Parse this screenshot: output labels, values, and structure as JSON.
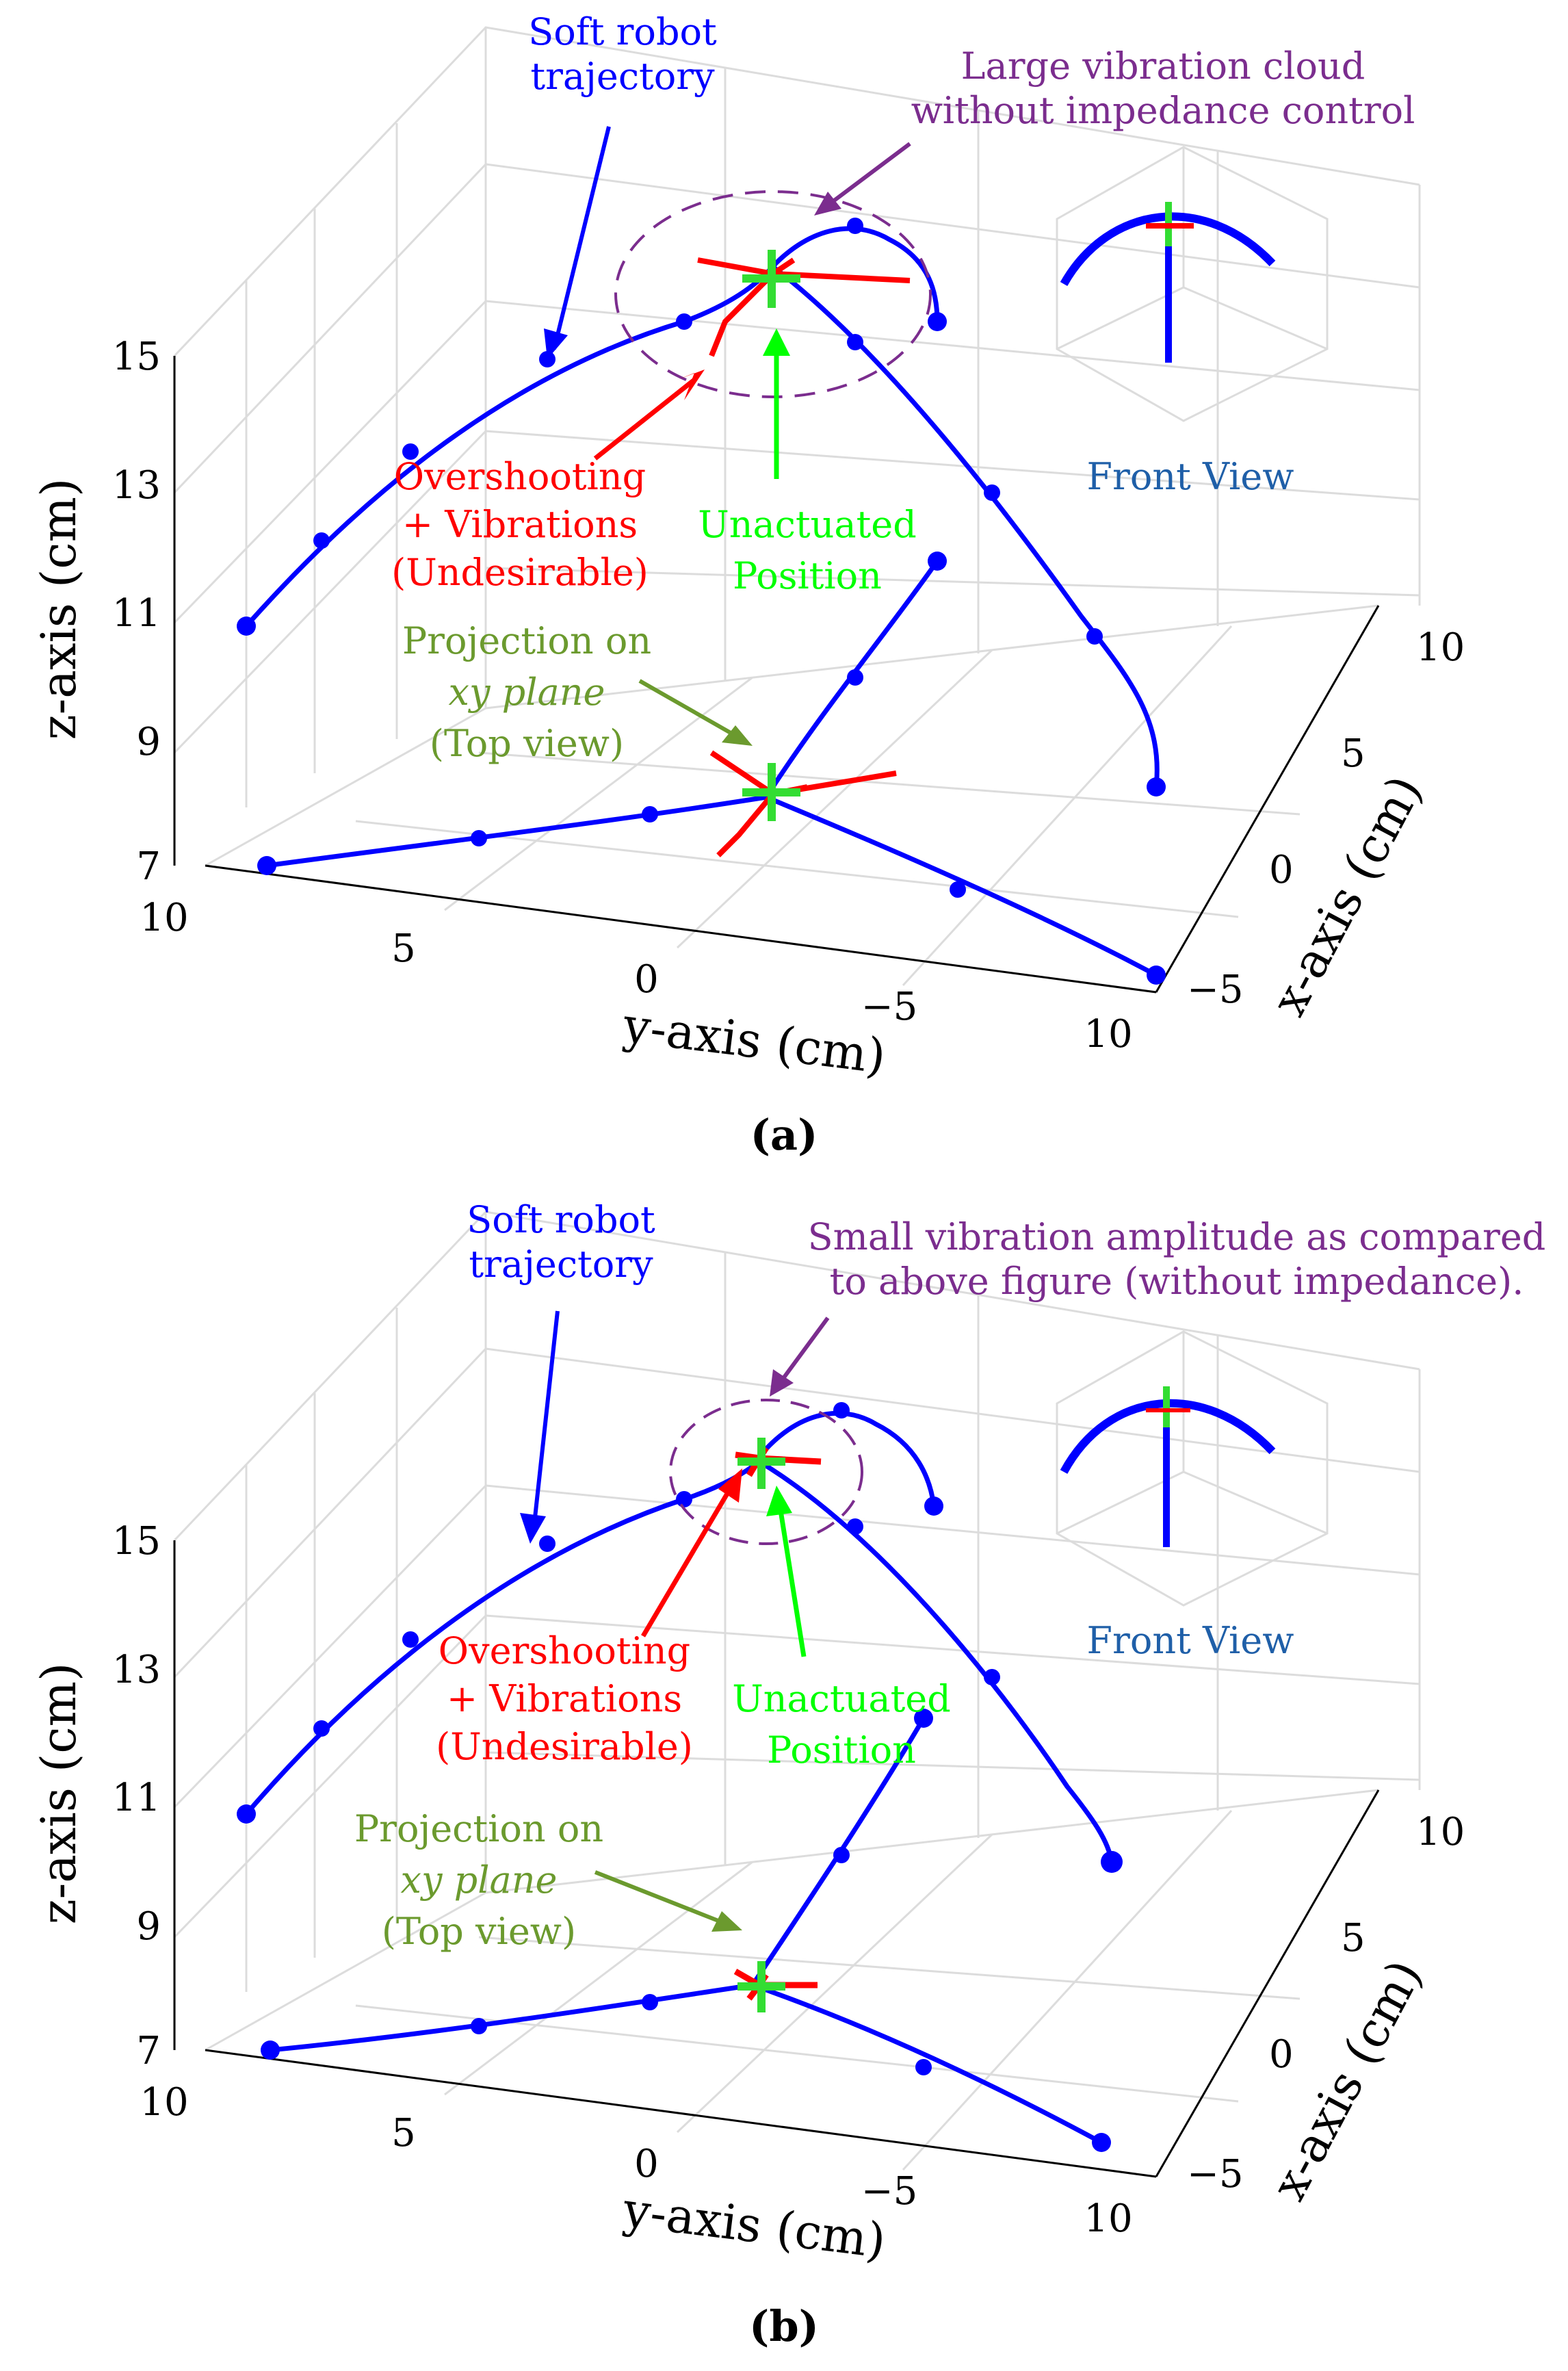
{
  "chart_data": [
    {
      "id": "a",
      "type": "scatter3d",
      "caption": "(a)",
      "xlabel": "x-axis (cm)",
      "ylabel": "y-axis (cm)",
      "zlabel": "z-axis (cm)",
      "xlim": [
        -5,
        10
      ],
      "ylim": [
        -5,
        10
      ],
      "zlim": [
        7,
        15
      ],
      "x_ticks": [
        "10",
        "5",
        "0",
        "−5"
      ],
      "y_ticks": [
        "10",
        "5",
        "0",
        "−5",
        "10"
      ],
      "z_ticks": [
        "15",
        "13",
        "11",
        "9",
        "7"
      ],
      "grid": true,
      "series": [
        {
          "name": "Soft robot trajectory",
          "color": "#0000ff"
        },
        {
          "name": "Overshooting + Vibrations (Undesirable)",
          "color": "#ff0000"
        },
        {
          "name": "Unactuated Position",
          "color": "#33dd33"
        }
      ],
      "annotations": [
        {
          "lines": [
            "Soft robot",
            "trajectory"
          ],
          "color": "#0000ff"
        },
        {
          "lines": [
            "Large vibration cloud",
            "without impedance control"
          ],
          "color": "#7b2d8e"
        },
        {
          "lines": [
            "Overshooting",
            "+ Vibrations",
            "(Undesirable)"
          ],
          "color": "#ff0000"
        },
        {
          "lines": [
            "Unactuated",
            "Position"
          ],
          "color": "#00ff00"
        },
        {
          "lines": [
            "Projection on",
            "xy plane",
            "(Top view)"
          ],
          "color": "#6b9a2e"
        },
        {
          "lines": [
            "Front View"
          ],
          "color": "#1f5fa8"
        }
      ]
    },
    {
      "id": "b",
      "type": "scatter3d",
      "caption": "(b)",
      "xlabel": "x-axis (cm)",
      "ylabel": "y-axis (cm)",
      "zlabel": "z-axis (cm)",
      "xlim": [
        -5,
        10
      ],
      "ylim": [
        -5,
        10
      ],
      "zlim": [
        7,
        15
      ],
      "x_ticks": [
        "10",
        "5",
        "0",
        "−5"
      ],
      "y_ticks": [
        "10",
        "5",
        "0",
        "−5",
        "10"
      ],
      "z_ticks": [
        "15",
        "13",
        "11",
        "9",
        "7"
      ],
      "grid": true,
      "series": [
        {
          "name": "Soft robot trajectory",
          "color": "#0000ff"
        },
        {
          "name": "Overshooting + Vibrations (Undesirable)",
          "color": "#ff0000"
        },
        {
          "name": "Unactuated Position",
          "color": "#33dd33"
        }
      ],
      "annotations": [
        {
          "lines": [
            "Soft robot",
            "trajectory"
          ],
          "color": "#0000ff"
        },
        {
          "lines": [
            "Small vibration amplitude as compared",
            "to above figure (without impedance)."
          ],
          "color": "#7b2d8e"
        },
        {
          "lines": [
            "Overshooting",
            "+ Vibrations",
            "(Undesirable)"
          ],
          "color": "#ff0000"
        },
        {
          "lines": [
            "Unactuated",
            "Position"
          ],
          "color": "#00ff00"
        },
        {
          "lines": [
            "Projection on",
            "xy plane",
            "(Top view)"
          ],
          "color": "#6b9a2e"
        },
        {
          "lines": [
            "Front View"
          ],
          "color": "#1f5fa8"
        }
      ]
    }
  ]
}
